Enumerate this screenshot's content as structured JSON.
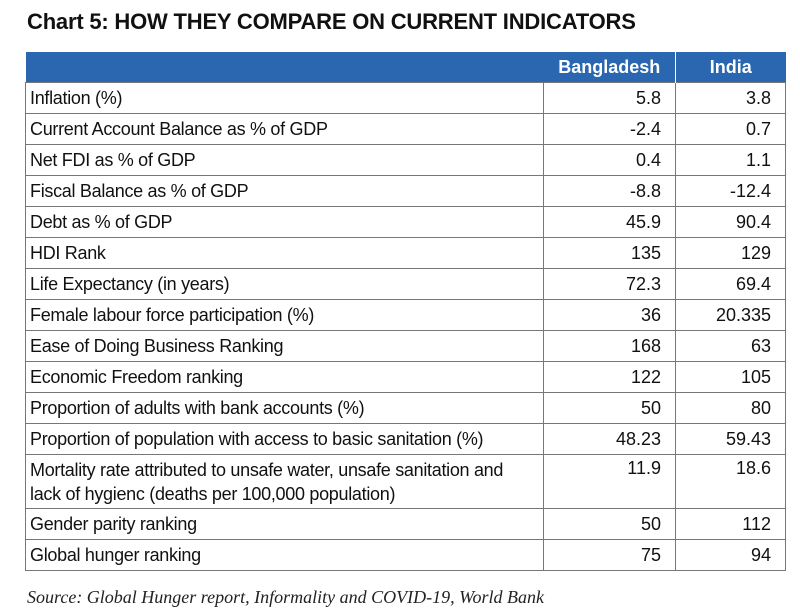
{
  "chart_data": {
    "type": "table",
    "title": "Chart 5: HOW THEY COMPARE ON CURRENT INDICATORS",
    "columns": [
      "",
      "Bangladesh",
      "India"
    ],
    "rows": [
      {
        "indicator": "Inflation (%)",
        "bangladesh": "5.8",
        "india": "3.8"
      },
      {
        "indicator": "Current Account Balance as % of GDP",
        "bangladesh": "-2.4",
        "india": "0.7"
      },
      {
        "indicator": "Net FDI as % of GDP",
        "bangladesh": "0.4",
        "india": "1.1"
      },
      {
        "indicator": "Fiscal Balance as % of GDP",
        "bangladesh": "-8.8",
        "india": "-12.4"
      },
      {
        "indicator": "Debt as % of GDP",
        "bangladesh": "45.9",
        "india": "90.4"
      },
      {
        "indicator": "HDI Rank",
        "bangladesh": "135",
        "india": "129"
      },
      {
        "indicator": "Life Expectancy (in years)",
        "bangladesh": "72.3",
        "india": "69.4"
      },
      {
        "indicator": "Female labour force participation (%)",
        "bangladesh": "36",
        "india": "20.335"
      },
      {
        "indicator": "Ease of Doing Business Ranking",
        "bangladesh": "168",
        "india": "63"
      },
      {
        "indicator": "Economic Freedom ranking",
        "bangladesh": "122",
        "india": "105"
      },
      {
        "indicator": "Proportion of adults with bank accounts (%)",
        "bangladesh": "50",
        "india": "80"
      },
      {
        "indicator": "Proportion of population with access to basic sanitation (%)",
        "bangladesh": "48.23",
        "india": "59.43"
      },
      {
        "indicator": "Mortality rate attributed to unsafe water, unsafe sanitation and lack of hygienc (deaths per 100,000 population)",
        "bangladesh": "11.9",
        "india": "18.6"
      },
      {
        "indicator": "Gender parity ranking",
        "bangladesh": "50",
        "india": "112"
      },
      {
        "indicator": "Global hunger ranking",
        "bangladesh": "75",
        "india": "94"
      }
    ],
    "source": "Source: Global Hunger report, Informality and COVID-19, World Bank"
  },
  "colors": {
    "header_bg": "#2a67b0",
    "header_text": "#ffffff",
    "border": "#777777"
  }
}
